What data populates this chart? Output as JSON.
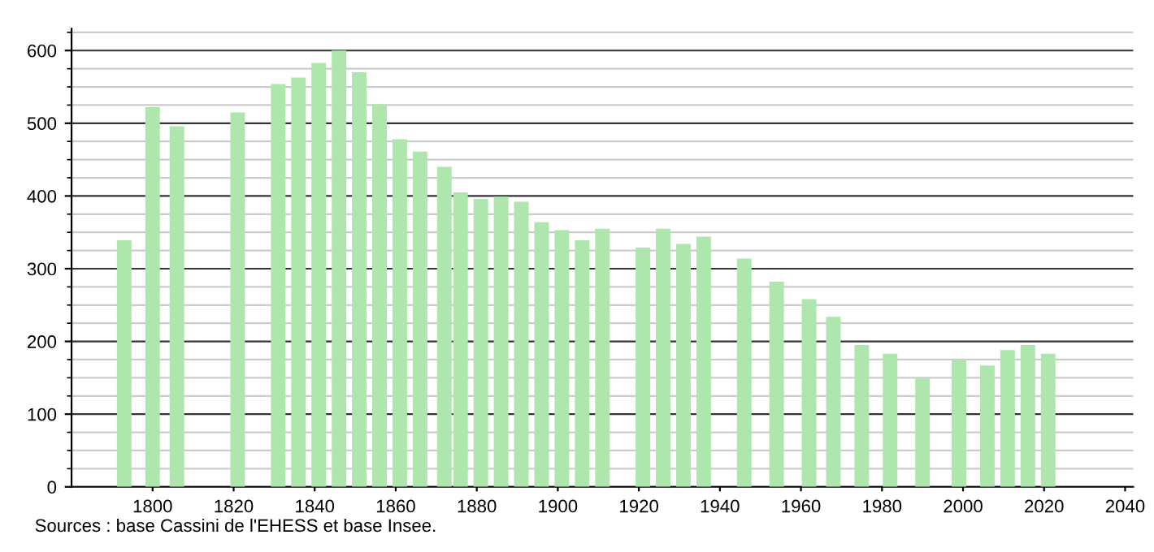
{
  "chart_data": {
    "type": "bar",
    "x": [
      1793,
      1800,
      1806,
      1821,
      1831,
      1836,
      1841,
      1846,
      1851,
      1856,
      1861,
      1866,
      1872,
      1876,
      1881,
      1886,
      1891,
      1896,
      1901,
      1906,
      1911,
      1921,
      1926,
      1931,
      1936,
      1946,
      1954,
      1962,
      1968,
      1975,
      1982,
      1990,
      1999,
      2006,
      2011,
      2016,
      2021
    ],
    "values": [
      339,
      522,
      496,
      515,
      554,
      563,
      583,
      600,
      570,
      526,
      478,
      461,
      440,
      405,
      396,
      399,
      392,
      364,
      353,
      339,
      355,
      329,
      355,
      334,
      344,
      314,
      282,
      258,
      234,
      195,
      183,
      149,
      175,
      167,
      188,
      195,
      183
    ],
    "color": "#aee6ae",
    "xlim": [
      1780,
      2042
    ],
    "xticks": [
      1800,
      1820,
      1840,
      1860,
      1880,
      1900,
      1920,
      1940,
      1960,
      1980,
      2000,
      2020,
      2040
    ],
    "ylim": [
      0,
      630
    ],
    "yticks": [
      0,
      100,
      200,
      300,
      400,
      500,
      600
    ],
    "grid": "y",
    "annotations": [
      "Sources : base Cassini de l'EHESS et base Insee."
    ]
  }
}
